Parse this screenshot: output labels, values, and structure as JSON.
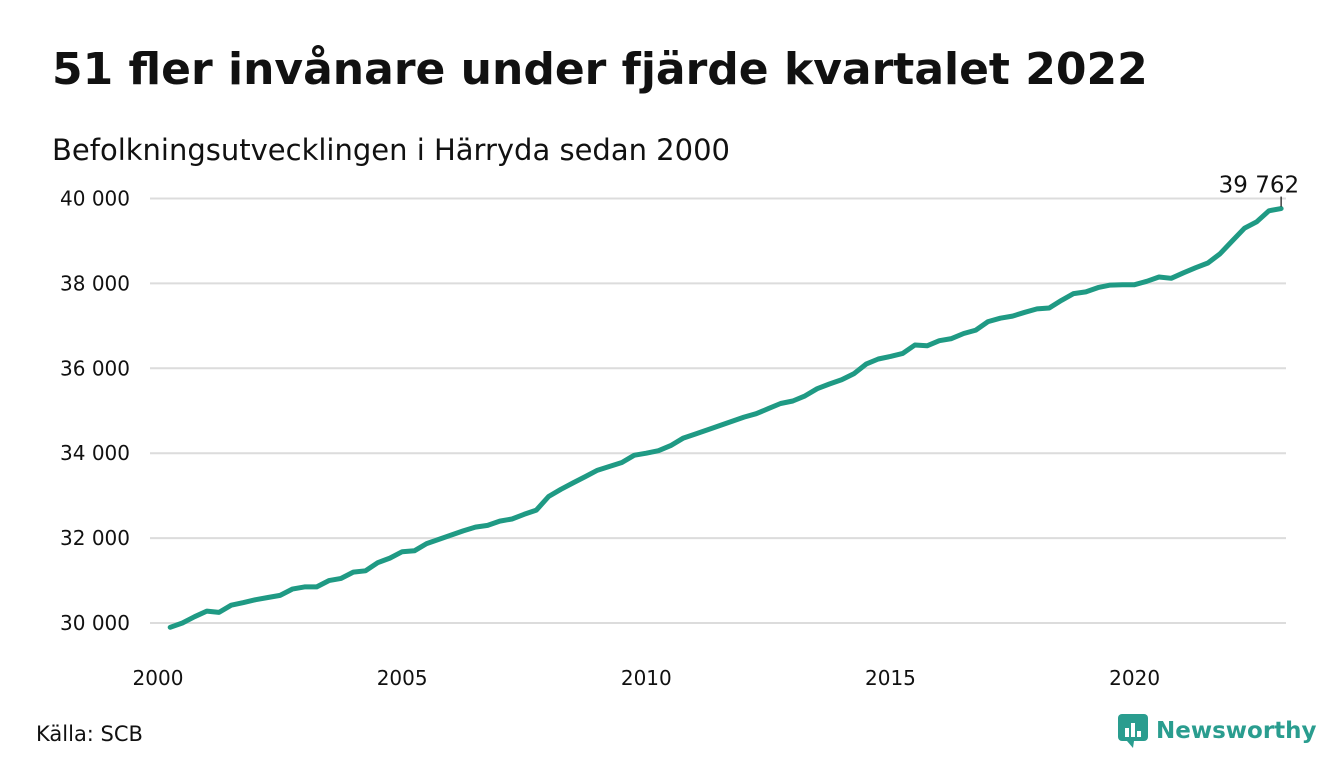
{
  "chart_data": {
    "type": "line",
    "title": "51 fler invånare under fjärde kvartalet 2022",
    "subtitle": "Befolkningsutvecklingen i Härryda sedan 2000",
    "xlabel": "",
    "ylabel": "",
    "xlim": [
      2000,
      2023.1
    ],
    "ylim": [
      29600,
      40200
    ],
    "yticks": [
      30000,
      32000,
      34000,
      36000,
      38000,
      40000
    ],
    "ytick_labels": [
      "30 000",
      "32 000",
      "34 000",
      "36 000",
      "38 000",
      "40 000"
    ],
    "xticks": [
      2000,
      2005,
      2010,
      2015,
      2020
    ],
    "xtick_labels": [
      "2000",
      "2005",
      "2010",
      "2015",
      "2020"
    ],
    "grid": "horizontal",
    "line_color": "#1f9a84",
    "end_label": "39 762",
    "series": [
      {
        "name": "",
        "x": [
          2000.25,
          2000.5,
          2000.75,
          2001.0,
          2001.25,
          2001.5,
          2001.75,
          2002.0,
          2002.25,
          2002.5,
          2002.75,
          2003.0,
          2003.25,
          2003.5,
          2003.75,
          2004.0,
          2004.25,
          2004.5,
          2004.75,
          2005.0,
          2005.25,
          2005.5,
          2005.75,
          2006.0,
          2006.25,
          2006.5,
          2006.75,
          2007.0,
          2007.25,
          2007.5,
          2007.75,
          2008.0,
          2008.25,
          2008.5,
          2008.75,
          2009.0,
          2009.25,
          2009.5,
          2009.75,
          2010.0,
          2010.25,
          2010.5,
          2010.75,
          2011.0,
          2011.25,
          2011.5,
          2011.75,
          2012.0,
          2012.25,
          2012.5,
          2012.75,
          2013.0,
          2013.25,
          2013.5,
          2013.75,
          2014.0,
          2014.25,
          2014.5,
          2014.75,
          2015.0,
          2015.25,
          2015.5,
          2015.75,
          2016.0,
          2016.25,
          2016.5,
          2016.75,
          2017.0,
          2017.25,
          2017.5,
          2017.75,
          2018.0,
          2018.25,
          2018.5,
          2018.75,
          2019.0,
          2019.25,
          2019.5,
          2019.75,
          2020.0,
          2020.25,
          2020.5,
          2020.75,
          2021.0,
          2021.25,
          2021.5,
          2021.75,
          2022.0,
          2022.25,
          2022.5,
          2022.75,
          2023.0
        ],
        "values": [
          29900,
          30000,
          30150,
          30280,
          30250,
          30420,
          30480,
          30550,
          30600,
          30650,
          30800,
          30850,
          30850,
          31000,
          31050,
          31200,
          31230,
          31420,
          31530,
          31680,
          31700,
          31870,
          31970,
          32070,
          32170,
          32260,
          32300,
          32400,
          32450,
          32560,
          32660,
          32980,
          33150,
          33300,
          33450,
          33600,
          33690,
          33780,
          33950,
          34000,
          34060,
          34180,
          34350,
          34450,
          34550,
          34650,
          34750,
          34850,
          34930,
          35050,
          35170,
          35230,
          35350,
          35520,
          35630,
          35730,
          35870,
          36100,
          36220,
          36280,
          36350,
          36550,
          36530,
          36650,
          36700,
          36820,
          36900,
          37100,
          37180,
          37230,
          37320,
          37400,
          37420,
          37600,
          37760,
          37800,
          37900,
          37960,
          37970,
          37970,
          38050,
          38150,
          38120,
          38250,
          38370,
          38480,
          38700,
          39000,
          39300,
          39450,
          39710,
          39762
        ]
      }
    ]
  },
  "footer": {
    "source": "Källa: SCB",
    "brand": "Newsworthy"
  },
  "icons": {
    "logo": "newsworthy-logo-icon"
  }
}
